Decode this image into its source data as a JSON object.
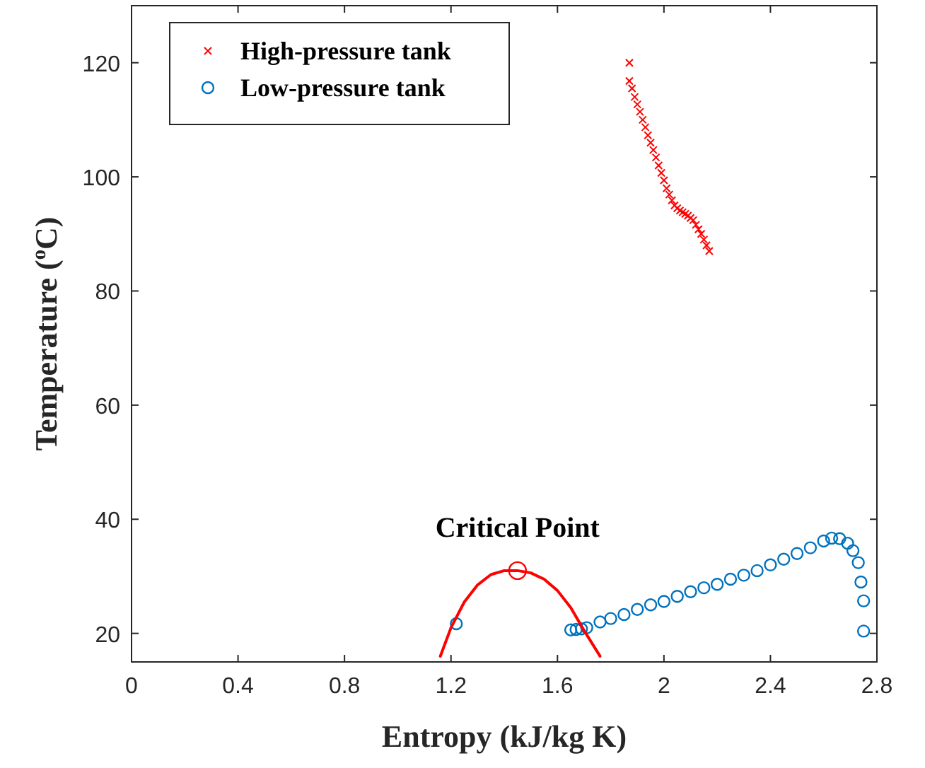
{
  "chart_data": {
    "type": "scatter",
    "xlabel": "Entropy (kJ/kg K)",
    "ylabel": "Temperature ($^{o}$C)",
    "xlim": [
      0,
      2.8
    ],
    "ylim": [
      15,
      130
    ],
    "xticks": [
      0,
      0.4,
      0.8,
      1.2,
      1.6,
      2,
      2.4,
      2.8
    ],
    "yticks": [
      20,
      40,
      60,
      80,
      100,
      120
    ],
    "grid": false,
    "legend": "top left",
    "annotations": [
      {
        "text": "Critical Point",
        "x": 1.45,
        "y": 31
      }
    ],
    "series": [
      {
        "name": "High-pressure tank",
        "marker": "cross",
        "color": "#ff0000",
        "x": [
          1.87,
          1.87,
          1.88,
          1.89,
          1.9,
          1.91,
          1.92,
          1.93,
          1.94,
          1.95,
          1.96,
          1.97,
          1.98,
          1.99,
          2.0,
          2.01,
          2.02,
          2.03,
          2.04,
          2.05,
          2.06,
          2.07,
          2.08,
          2.09,
          2.1,
          2.11,
          2.12,
          2.13,
          2.14,
          2.15,
          2.16,
          2.17
        ],
        "values": [
          120,
          116.8,
          115.5,
          114,
          112.7,
          111.4,
          110,
          108.7,
          107.3,
          106,
          104.7,
          103.4,
          102,
          100.7,
          99.4,
          98,
          96.9,
          95.9,
          95,
          94.5,
          94.1,
          93.8,
          93.5,
          93.2,
          92.8,
          92.4,
          91.6,
          90.8,
          90,
          89,
          88,
          87
        ]
      },
      {
        "name": "Low-pressure tank",
        "marker": "circle",
        "color": "#0072bd",
        "x": [
          1.22,
          1.65,
          1.67,
          1.69,
          1.71,
          1.76,
          1.8,
          1.85,
          1.9,
          1.95,
          2.0,
          2.05,
          2.1,
          2.15,
          2.2,
          2.25,
          2.3,
          2.35,
          2.4,
          2.45,
          2.5,
          2.55,
          2.6,
          2.63,
          2.66,
          2.69,
          2.71,
          2.73,
          2.74,
          2.75,
          2.75
        ],
        "values": [
          21.7,
          20.6,
          20.7,
          20.8,
          21.0,
          22.0,
          22.6,
          23.3,
          24.2,
          25.0,
          25.6,
          26.5,
          27.3,
          28.0,
          28.6,
          29.5,
          30.2,
          31.0,
          32.0,
          33.0,
          34.0,
          35.0,
          36.2,
          36.7,
          36.6,
          35.8,
          34.5,
          32.4,
          29.0,
          25.7,
          20.4
        ]
      },
      {
        "type": "line",
        "marker": "none",
        "color": "#ff0000",
        "x": [
          1.16,
          1.2,
          1.25,
          1.3,
          1.35,
          1.4,
          1.45,
          1.5,
          1.55,
          1.6,
          1.65,
          1.7,
          1.76
        ],
        "values": [
          16,
          21,
          25.5,
          28.5,
          30.3,
          31,
          31,
          30.6,
          29.5,
          27.5,
          24.5,
          20.5,
          16
        ]
      },
      {
        "marker": "circle",
        "color": "#ff0000",
        "x": [
          1.45
        ],
        "values": [
          31
        ]
      }
    ]
  }
}
